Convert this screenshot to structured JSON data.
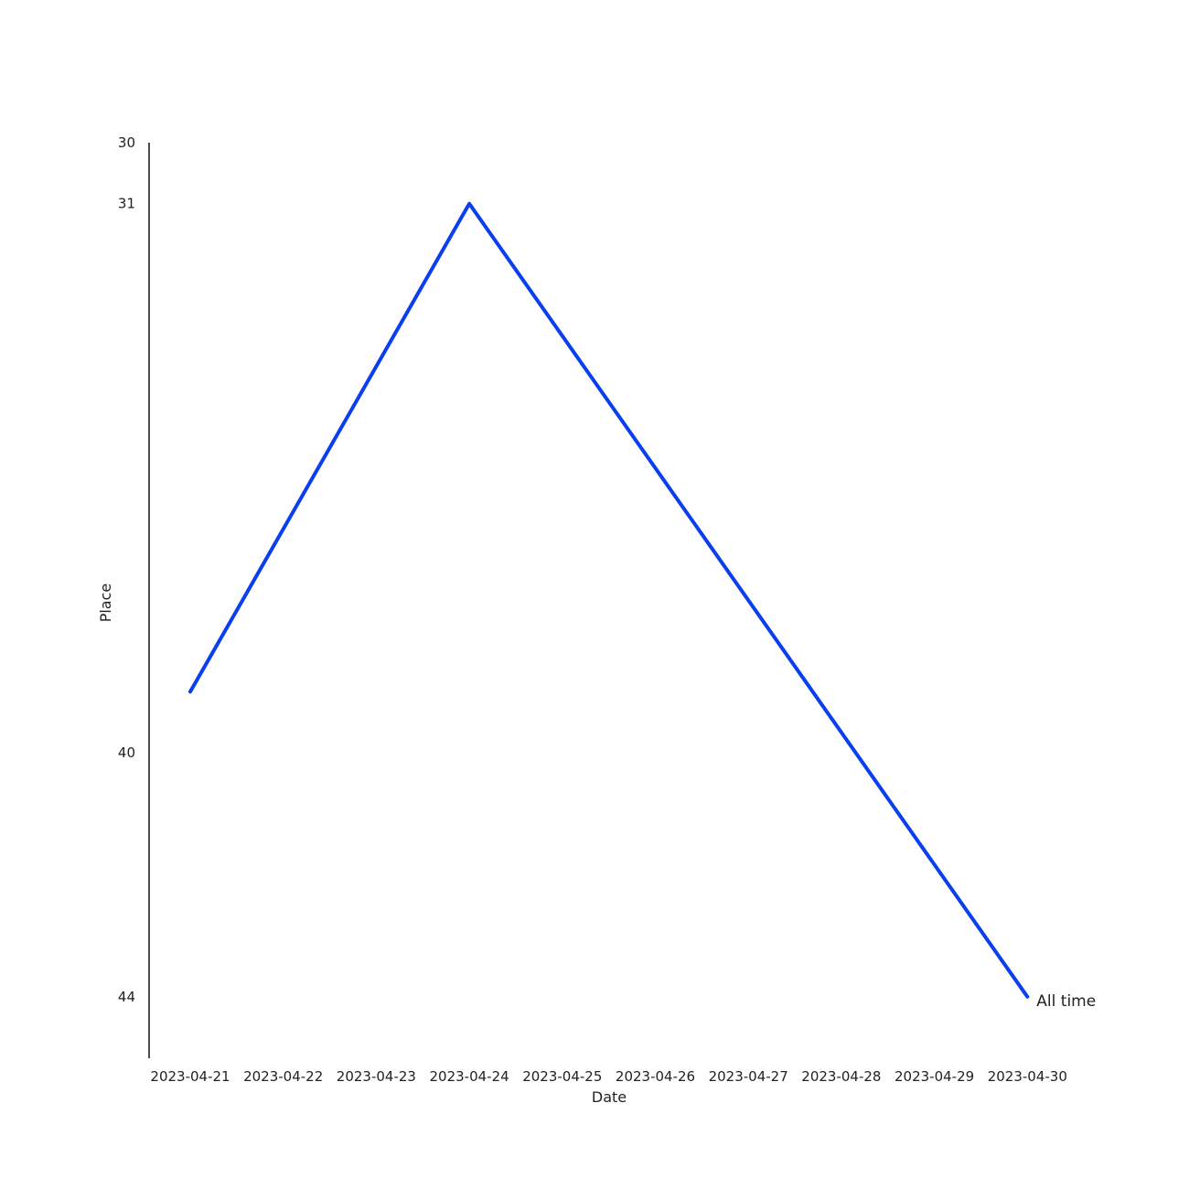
{
  "chart_data": {
    "type": "line",
    "xlabel": "Date",
    "ylabel": "Place",
    "x": [
      "2023-04-21",
      "2023-04-22",
      "2023-04-23",
      "2023-04-24",
      "2023-04-25",
      "2023-04-26",
      "2023-04-27",
      "2023-04-28",
      "2023-04-29",
      "2023-04-30"
    ],
    "ylim": [
      30,
      45.5
    ],
    "y_inverted": true,
    "y_ticks": [
      30,
      31,
      40,
      44
    ],
    "grid": false,
    "series": [
      {
        "name": "All time",
        "color": "#0a3ff0",
        "points": [
          {
            "x": "2023-04-21",
            "y": 39
          },
          {
            "x": "2023-04-24",
            "y": 31
          },
          {
            "x": "2023-04-30",
            "y": 44
          }
        ]
      }
    ]
  }
}
